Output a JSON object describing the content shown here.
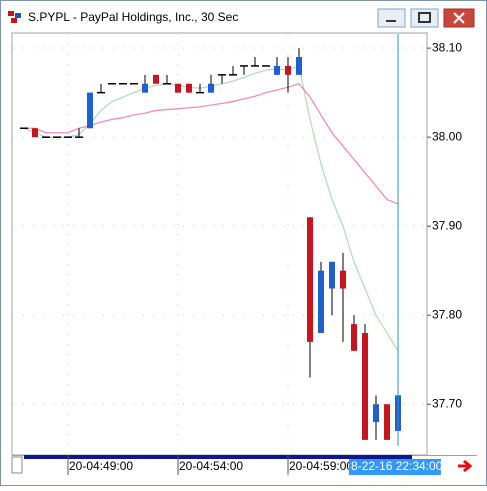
{
  "chart_data": {
    "type": "candlestick",
    "title": "S.PYPL - PayPal Holdings, Inc., 30 Sec",
    "categories": [
      null,
      null,
      null,
      null,
      "20-04:49:00",
      null,
      null,
      null,
      null,
      null,
      null,
      null,
      null,
      null,
      "20-04:54:00",
      null,
      null,
      null,
      null,
      null,
      null,
      null,
      null,
      null,
      "20-04:59:00",
      null,
      null,
      null,
      null,
      null,
      null,
      null,
      null,
      null,
      null
    ],
    "open": [
      38.01,
      38.01,
      38.0,
      38.0,
      38.0,
      38.0,
      38.01,
      38.05,
      38.06,
      38.06,
      38.06,
      38.05,
      38.07,
      38.06,
      38.06,
      38.06,
      38.05,
      38.05,
      38.07,
      38.07,
      38.08,
      38.08,
      38.08,
      38.07,
      38.08,
      38.07,
      37.91,
      37.78,
      37.83,
      37.85,
      37.79,
      37.78,
      37.68,
      37.7,
      37.67
    ],
    "high": [
      38.01,
      38.01,
      38.0,
      38.0,
      38.0,
      38.01,
      38.05,
      38.06,
      38.06,
      38.06,
      38.06,
      38.07,
      38.07,
      38.07,
      38.06,
      38.06,
      38.06,
      38.07,
      38.07,
      38.08,
      38.08,
      38.09,
      38.08,
      38.09,
      38.09,
      38.1,
      37.91,
      37.86,
      37.86,
      37.87,
      37.8,
      37.79,
      37.71,
      37.7,
      37.74
    ],
    "low": [
      38.01,
      38.0,
      38.0,
      38.0,
      38.0,
      38.0,
      38.01,
      38.05,
      38.06,
      38.06,
      38.06,
      38.05,
      38.06,
      38.06,
      38.05,
      38.05,
      38.05,
      38.05,
      38.06,
      38.07,
      38.07,
      38.08,
      38.08,
      38.07,
      38.05,
      38.07,
      37.73,
      37.78,
      37.8,
      37.77,
      37.76,
      37.66,
      37.66,
      37.66,
      37.66
    ],
    "close": [
      38.01,
      38.0,
      38.0,
      38.0,
      38.0,
      38.0,
      38.05,
      38.05,
      38.06,
      38.06,
      38.06,
      38.06,
      38.06,
      38.06,
      38.05,
      38.05,
      38.05,
      38.06,
      38.07,
      38.07,
      38.08,
      38.08,
      38.08,
      38.08,
      38.07,
      38.09,
      37.77,
      37.85,
      37.86,
      37.83,
      37.76,
      37.66,
      37.7,
      37.66,
      37.71
    ],
    "up_color": "#1f5fcf",
    "down_color": "#c8141e",
    "series": [
      {
        "color": "#b9dcb9",
        "values": [
          38.01,
          38.005,
          38.0,
          38.0,
          38.0,
          38.003,
          38.015,
          38.03,
          38.04,
          38.045,
          38.05,
          38.055,
          38.058,
          38.06,
          38.058,
          38.056,
          38.055,
          38.057,
          38.06,
          38.063,
          38.067,
          38.072,
          38.075,
          38.077,
          38.075,
          38.08,
          38.02,
          37.97,
          37.93,
          37.9,
          37.86,
          37.83,
          37.8,
          37.78,
          37.76
        ]
      },
      {
        "color": "#f08cbe",
        "values": [
          38.01,
          38.01,
          38.005,
          38.005,
          38.005,
          38.01,
          38.013,
          38.017,
          38.02,
          38.022,
          38.025,
          38.027,
          38.03,
          38.031,
          38.032,
          38.033,
          38.034,
          38.036,
          38.038,
          38.04,
          38.043,
          38.046,
          38.05,
          38.053,
          38.056,
          38.06,
          38.045,
          38.025,
          38.005,
          37.99,
          37.975,
          37.96,
          37.945,
          37.93,
          37.925
        ]
      }
    ],
    "ylim": [
      37.643,
      38.117
    ],
    "yticks": [
      {
        "value": 37.7,
        "label": "37.70"
      },
      {
        "value": 37.8,
        "label": "37.80"
      },
      {
        "value": 37.9,
        "label": "37.90"
      },
      {
        "value": 38.0,
        "label": "38.00"
      },
      {
        "value": 38.1,
        "label": "38.10"
      }
    ],
    "grid": true,
    "cursor_label": "8-22-16 22:34:00"
  }
}
